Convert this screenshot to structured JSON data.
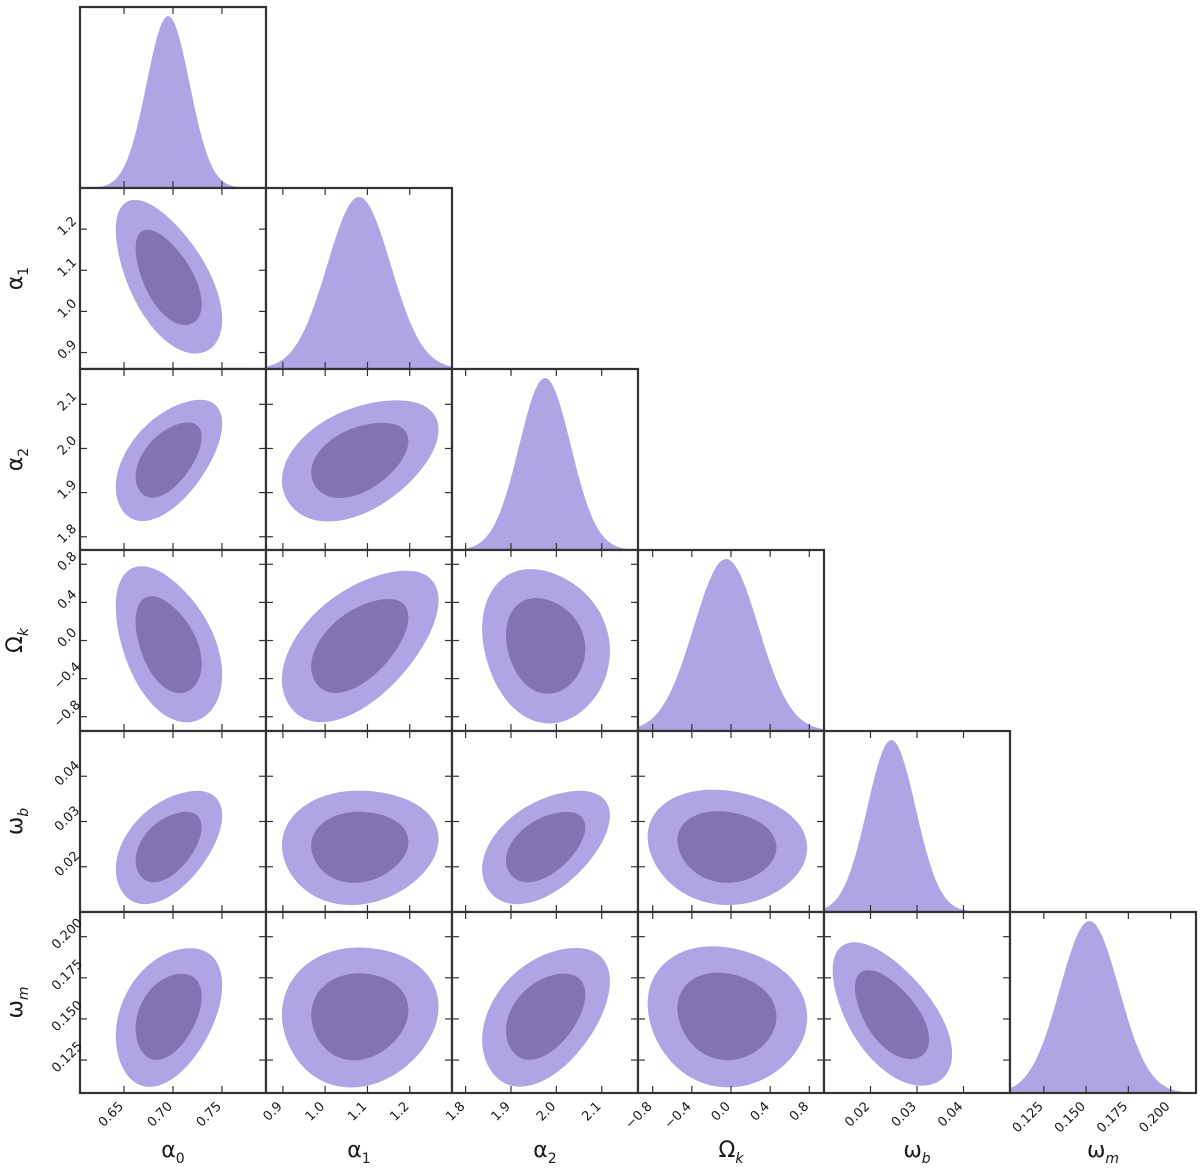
{
  "chart_data": {
    "type": "corner",
    "params": [
      {
        "key": "a0",
        "symbol": "α",
        "sub": "0",
        "italic_sub": false,
        "mean": 0.695,
        "sd": 0.022,
        "lim": [
          0.605,
          0.795
        ],
        "ticks": [
          "0.65",
          "0.70",
          "0.75"
        ],
        "tick_values": [
          0.65,
          0.7,
          0.75
        ]
      },
      {
        "key": "a1",
        "symbol": "α",
        "sub": "1",
        "italic_sub": false,
        "mean": 1.08,
        "sd": 0.075,
        "lim": [
          0.86,
          1.3
        ],
        "ticks": [
          "0.9",
          "1.0",
          "1.1",
          "1.2"
        ],
        "tick_values": [
          0.9,
          1.0,
          1.1,
          1.2
        ]
      },
      {
        "key": "a2",
        "symbol": "α",
        "sub": "2",
        "italic_sub": false,
        "mean": 1.975,
        "sd": 0.057,
        "lim": [
          1.77,
          2.18
        ],
        "ticks": [
          "1.8",
          "1.9",
          "2.0",
          "2.1"
        ],
        "tick_values": [
          1.8,
          1.9,
          2.0,
          2.1
        ]
      },
      {
        "key": "ok",
        "symbol": "Ω",
        "sub": "k",
        "italic_sub": true,
        "mean": -0.05,
        "sd": 0.33,
        "lim": [
          -0.95,
          0.95
        ],
        "ticks": [
          "−0.8",
          "−0.4",
          "0.0",
          "0.4",
          "0.8"
        ],
        "tick_values": [
          -0.8,
          -0.4,
          0.0,
          0.4,
          0.8
        ]
      },
      {
        "key": "wb",
        "symbol": "ω",
        "sub": "b",
        "italic_sub": true,
        "mean": 0.0245,
        "sd": 0.0052,
        "lim": [
          0.01,
          0.05
        ],
        "ticks": [
          "0.02",
          "0.03",
          "0.04"
        ],
        "tick_values": [
          0.02,
          0.03,
          0.04
        ]
      },
      {
        "key": "wm",
        "symbol": "ω",
        "sub": "m",
        "italic_sub": true,
        "mean": 0.152,
        "sd": 0.0175,
        "lim": [
          0.105,
          0.215
        ],
        "ticks": [
          "0.125",
          "0.150",
          "0.175",
          "0.200"
        ],
        "tick_values": [
          0.125,
          0.15,
          0.175,
          0.2
        ]
      }
    ],
    "correlations": [
      {
        "pair": [
          "a0",
          "a1"
        ],
        "rho": -0.55
      },
      {
        "pair": [
          "a0",
          "a2"
        ],
        "rho": 0.55
      },
      {
        "pair": [
          "a1",
          "a2"
        ],
        "rho": 0.45
      },
      {
        "pair": [
          "a0",
          "ok"
        ],
        "rho": -0.4
      },
      {
        "pair": [
          "a1",
          "ok"
        ],
        "rho": 0.55
      },
      {
        "pair": [
          "a2",
          "ok"
        ],
        "rho": -0.1
      },
      {
        "pair": [
          "a0",
          "wb"
        ],
        "rho": 0.5
      },
      {
        "pair": [
          "a1",
          "wb"
        ],
        "rho": 0.1
      },
      {
        "pair": [
          "a2",
          "wb"
        ],
        "rho": 0.5
      },
      {
        "pair": [
          "ok",
          "wb"
        ],
        "rho": -0.05
      },
      {
        "pair": [
          "a0",
          "wm"
        ],
        "rho": 0.4
      },
      {
        "pair": [
          "a1",
          "wm"
        ],
        "rho": 0.1
      },
      {
        "pair": [
          "a2",
          "wm"
        ],
        "rho": 0.45
      },
      {
        "pair": [
          "ok",
          "wm"
        ],
        "rho": -0.05
      },
      {
        "pair": [
          "wb",
          "wm"
        ],
        "rho": -0.55
      }
    ],
    "contour_levels": [
      "68%",
      "95%"
    ],
    "colors": {
      "inner": "#8273b2",
      "outer": "#b1a4e4",
      "marginal": "#b1a4e4",
      "frame": "#333333"
    }
  }
}
